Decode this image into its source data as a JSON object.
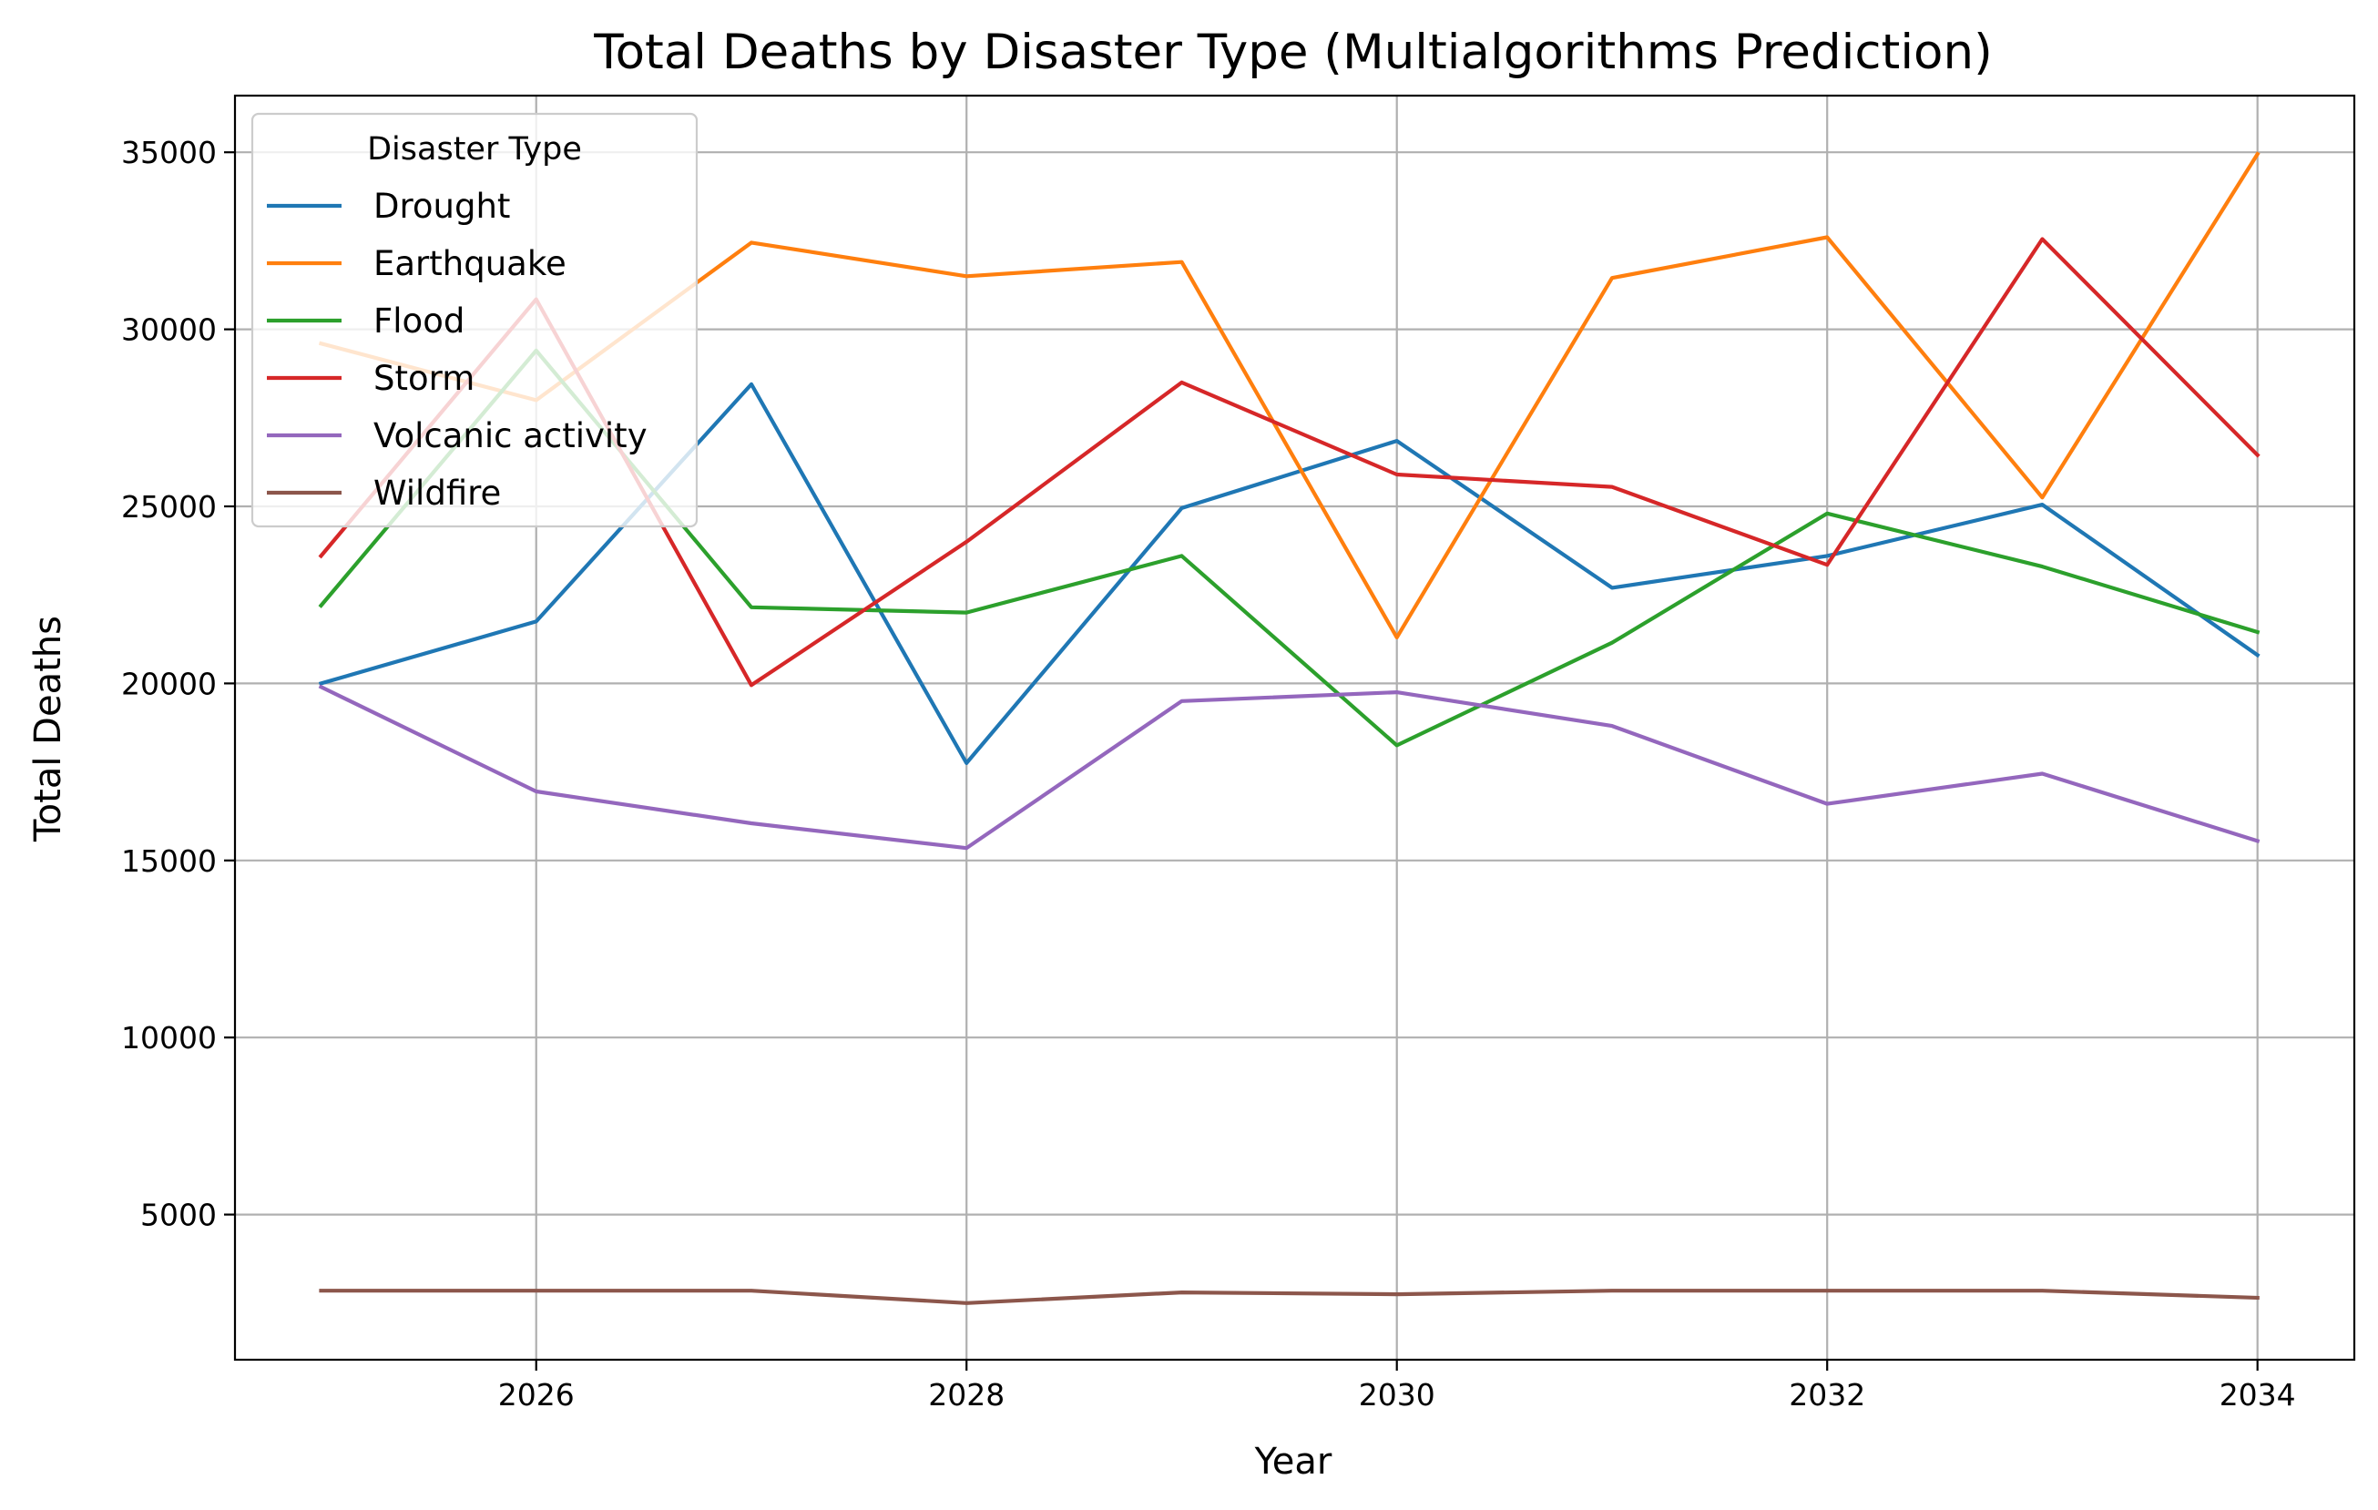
{
  "chart_data": {
    "type": "line",
    "title": "Total Deaths by Disaster Type (Multialgorithms Prediction)",
    "xlabel": "Year",
    "ylabel": "Total Deaths",
    "x": [
      2025,
      2026,
      2027,
      2028,
      2029,
      2030,
      2031,
      2032,
      2033,
      2034
    ],
    "xlim": [
      2024.6,
      2034.45
    ],
    "ylim": [
      900,
      36600
    ],
    "xticks": [
      2026,
      2028,
      2030,
      2032,
      2034
    ],
    "xtick_labels": [
      "2026",
      "2028",
      "2030",
      "2032",
      "2034"
    ],
    "yticks": [
      5000,
      10000,
      15000,
      20000,
      25000,
      30000,
      35000
    ],
    "ytick_labels": [
      "5000",
      "10000",
      "15000",
      "20000",
      "25000",
      "30000",
      "35000"
    ],
    "grid": true,
    "legend": {
      "title": "Disaster Type",
      "placement": "top-left"
    },
    "series": [
      {
        "name": "Drought",
        "color": "#1f77b4",
        "values": [
          20000,
          21750,
          28450,
          17750,
          24950,
          26850,
          22700,
          23600,
          25050,
          20800
        ]
      },
      {
        "name": "Earthquake",
        "color": "#ff7f0e",
        "values": [
          29600,
          28000,
          32450,
          31500,
          31900,
          21300,
          31450,
          32600,
          25250,
          34950
        ]
      },
      {
        "name": "Flood",
        "color": "#2ca02c",
        "values": [
          22200,
          29400,
          22150,
          22000,
          23600,
          18250,
          21150,
          24800,
          23300,
          21450
        ]
      },
      {
        "name": "Storm",
        "color": "#d62728",
        "values": [
          23600,
          30850,
          19950,
          24000,
          28500,
          25900,
          25550,
          23350,
          32550,
          26450
        ]
      },
      {
        "name": "Volcanic activity",
        "color": "#9467bd",
        "values": [
          19900,
          16950,
          16050,
          15350,
          19500,
          19750,
          18800,
          16600,
          17450,
          15550
        ]
      },
      {
        "name": "Wildfire",
        "color": "#8c564b",
        "values": [
          2850,
          2850,
          2850,
          2500,
          2800,
          2750,
          2850,
          2850,
          2850,
          2650
        ]
      }
    ]
  }
}
